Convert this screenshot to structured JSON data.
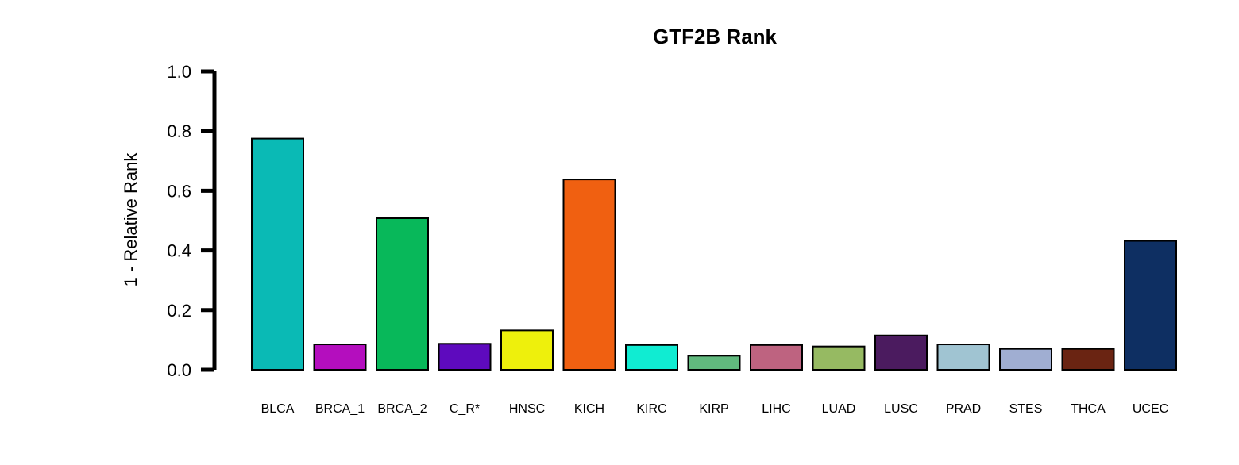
{
  "chart_data": {
    "type": "bar",
    "title": "GTF2B Rank",
    "xlabel": "",
    "ylabel": "1 - Relative Rank",
    "ylim": [
      0,
      1
    ],
    "yticks": [
      "0.0",
      "0.2",
      "0.4",
      "0.6",
      "0.8",
      "1.0"
    ],
    "grid": false,
    "legend": "none",
    "categories": [
      "BLCA",
      "BRCA_1",
      "BRCA_2",
      "C_R*",
      "HNSC",
      "KICH",
      "KIRC",
      "KIRP",
      "LIHC",
      "LUAD",
      "LUSC",
      "PRAD",
      "STES",
      "THCA",
      "UCEC"
    ],
    "values": [
      0.775,
      0.085,
      0.508,
      0.087,
      0.132,
      0.638,
      0.083,
      0.047,
      0.083,
      0.078,
      0.115,
      0.085,
      0.07,
      0.07,
      0.432
    ],
    "colors": [
      "#0ABAB5",
      "#B40EBE",
      "#08B85A",
      "#5E0ABE",
      "#EEF00C",
      "#F06011",
      "#10ECD2",
      "#61B97E",
      "#BE6380",
      "#96BA62",
      "#4B1B5F",
      "#A0C4D2",
      "#A0AED2",
      "#6A2412",
      "#0E2F62"
    ]
  }
}
